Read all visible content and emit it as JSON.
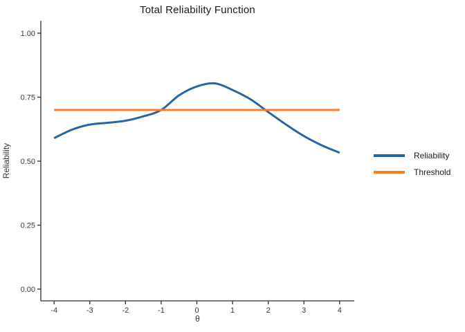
{
  "figure": {
    "title": "Total Reliability Function",
    "x_axis": {
      "label": "θ",
      "tick_values": [
        -4,
        -3,
        -2,
        -1,
        0,
        1,
        2,
        3,
        4
      ],
      "tick_labels": [
        "-4",
        "-3",
        "-2",
        "-1",
        "0",
        "1",
        "2",
        "3",
        "4"
      ]
    },
    "y_axis": {
      "label": "Reliability",
      "tick_values": [
        0,
        0.25,
        0.5,
        0.75,
        1.0
      ],
      "tick_labels": [
        "0.00",
        "0.25",
        "0.50",
        "0.75",
        "1.00"
      ]
    },
    "legend": {
      "items": [
        {
          "label": "Reliability",
          "color": "#2766a5"
        },
        {
          "label": "Threshold",
          "color": "#f97d25"
        }
      ]
    },
    "colors": {
      "axis": "#2b2b2b",
      "tick_text": "#383838",
      "title_text": "#1a1a1a",
      "background": "#ffffff"
    }
  },
  "chart_data": {
    "type": "line",
    "title": "Total Reliability Function",
    "xlabel": "θ",
    "ylabel": "Reliability",
    "xlim": [
      -4,
      4
    ],
    "ylim": [
      0,
      1
    ],
    "x_ticks": [
      -4,
      -3,
      -2,
      -1,
      0,
      1,
      2,
      3,
      4
    ],
    "y_ticks": [
      0,
      0.25,
      0.5,
      0.75,
      1.0
    ],
    "grid": false,
    "legend_position": "right",
    "x": [
      -4,
      -3.5,
      -3,
      -2.5,
      -2,
      -1.5,
      -1,
      -0.5,
      0,
      0.5,
      1,
      1.5,
      2,
      2.5,
      3,
      3.5,
      4
    ],
    "series": [
      {
        "name": "Reliability",
        "color": "#2766a5",
        "values": [
          0.59,
          0.623,
          0.643,
          0.65,
          0.658,
          0.675,
          0.7,
          0.757,
          0.792,
          0.804,
          0.778,
          0.742,
          0.692,
          0.643,
          0.598,
          0.562,
          0.533
        ]
      },
      {
        "name": "Threshold",
        "color": "#f97d25",
        "values": [
          0.7,
          0.7,
          0.7,
          0.7,
          0.7,
          0.7,
          0.7,
          0.7,
          0.7,
          0.7,
          0.7,
          0.7,
          0.7,
          0.7,
          0.7,
          0.7,
          0.7
        ]
      }
    ]
  }
}
